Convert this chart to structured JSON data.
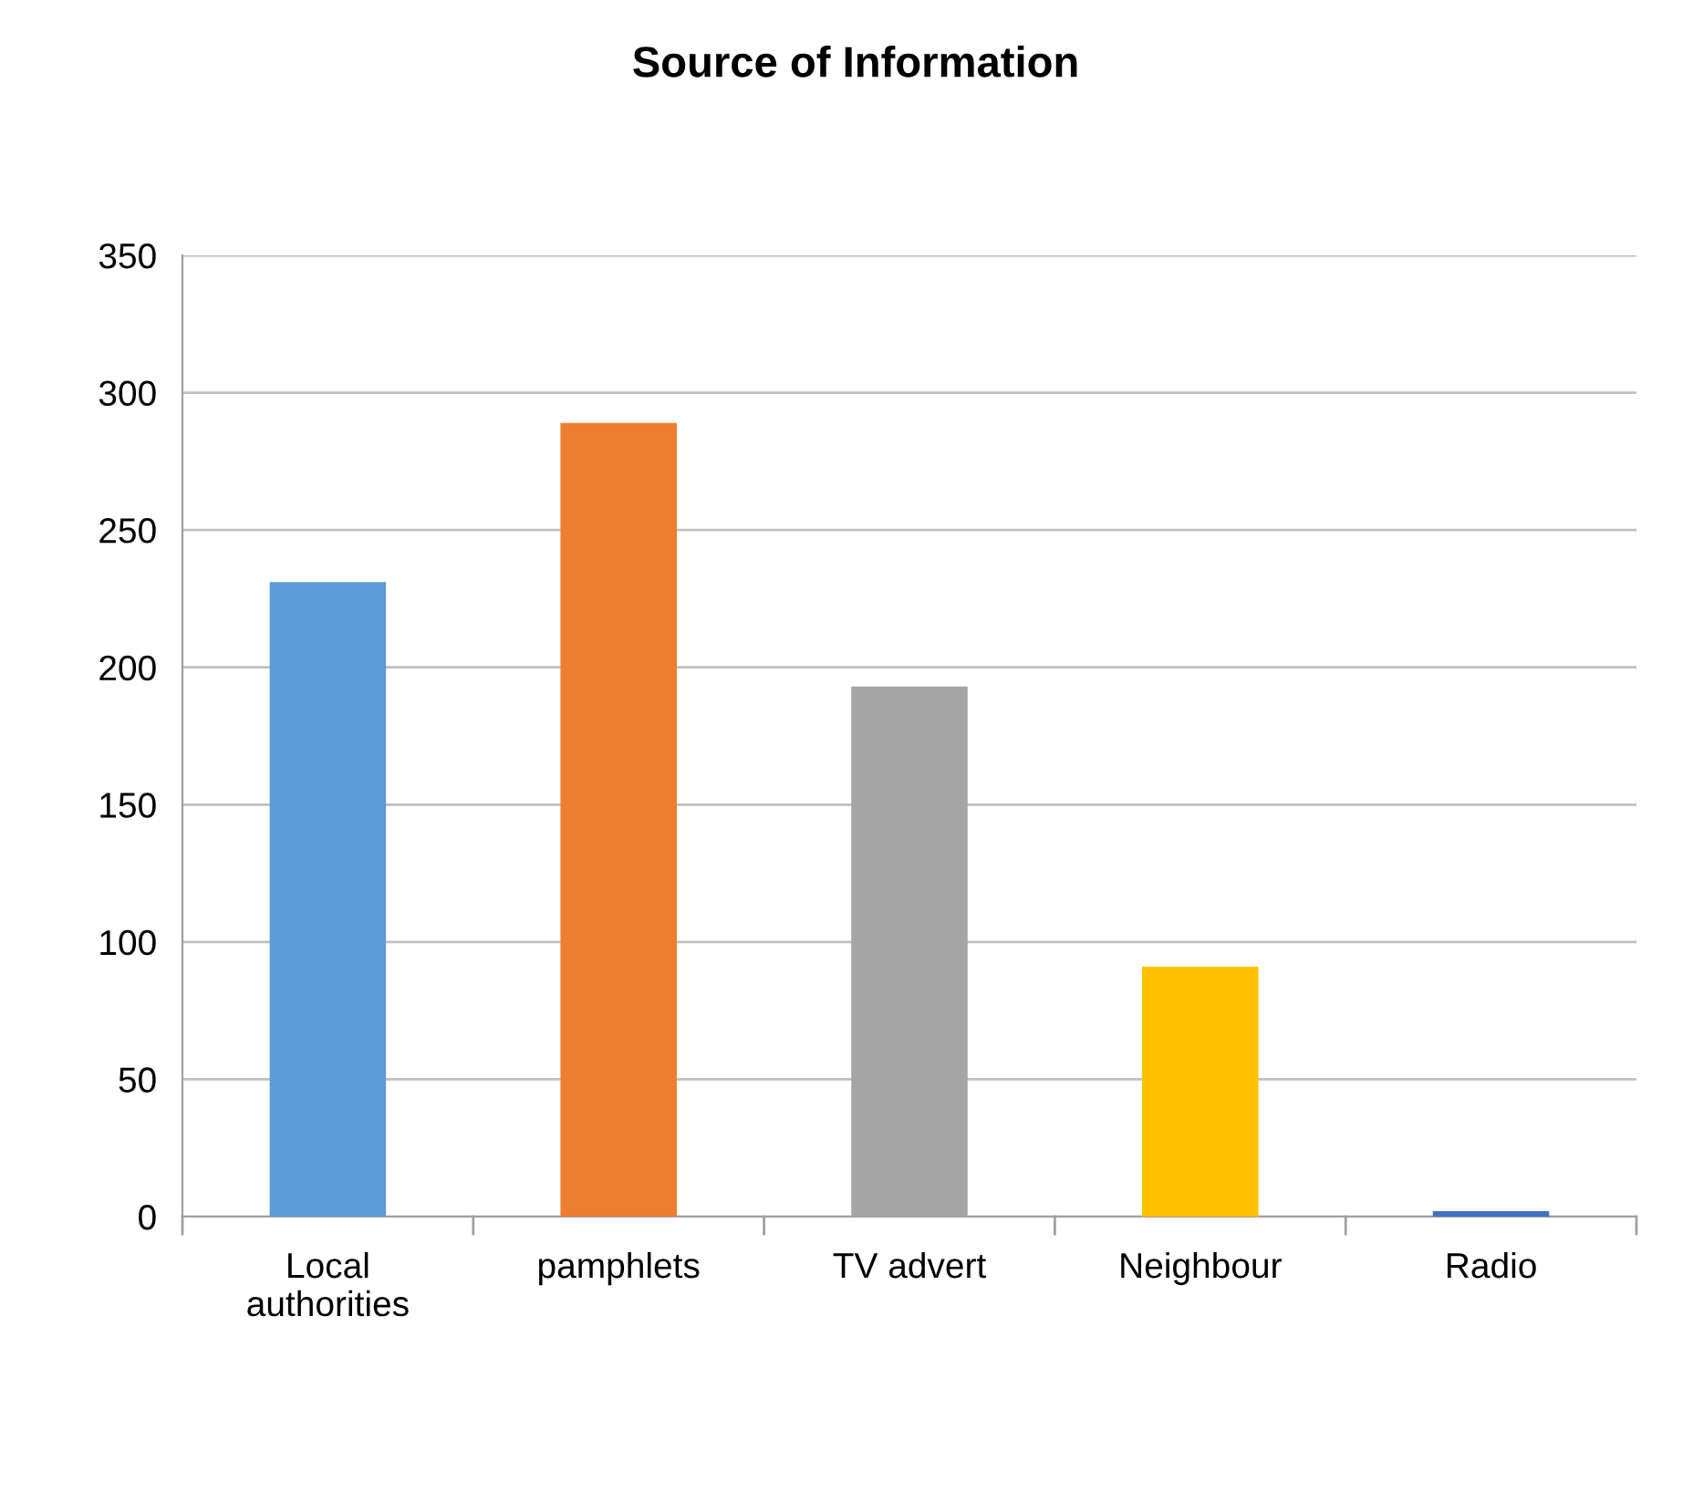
{
  "chart_data": {
    "type": "bar",
    "title": "Source of Information",
    "categories": [
      "Local\nauthorities",
      "pamphlets",
      "TV advert",
      "Neighbour",
      "Radio"
    ],
    "values": [
      231,
      289,
      193,
      91,
      2
    ],
    "colors": [
      "#5b9bd5",
      "#ed7d31",
      "#a5a5a5",
      "#ffc000",
      "#4472c4"
    ],
    "ylim": [
      0,
      350
    ],
    "yticks": [
      0,
      50,
      100,
      150,
      200,
      250,
      300,
      350
    ],
    "grid": "y",
    "legend": false
  }
}
